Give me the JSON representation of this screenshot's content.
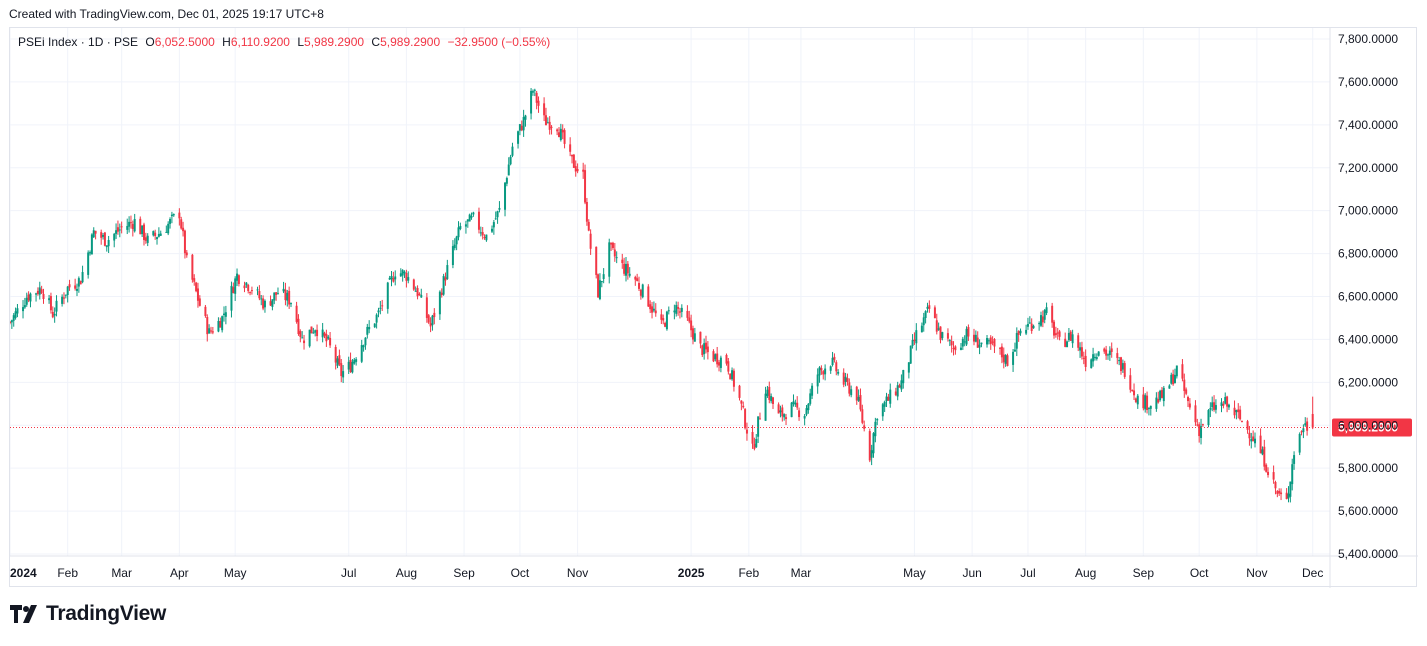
{
  "header": {
    "created_note": "Created with TradingView.com, Dec 01, 2025 19:17 UTC+8"
  },
  "legend": {
    "symbol": "PSEi Index · 1D · PSE",
    "open_label": "O",
    "open": "6,052.5000",
    "high_label": "H",
    "high": "6,110.9200",
    "low_label": "L",
    "low": "5,989.2900",
    "close_label": "C",
    "close": "5,989.2900",
    "change": "−32.9500 (−0.55%)"
  },
  "brand": {
    "name": "TradingView",
    "logo_icon": "tradingview-logo-icon"
  },
  "colors": {
    "up": "#089981",
    "down": "#f23645",
    "grid": "#f0f3fa",
    "last_price_bg": "#f23645",
    "text": "#131722"
  },
  "chart_data": {
    "type": "candlestick",
    "title": "PSEi Index · 1D · PSE",
    "ylim": [
      5400,
      7800
    ],
    "y_ticks": [
      "5,400.0000",
      "5,600.0000",
      "5,800.0000",
      "6,000.0000",
      "6,200.0000",
      "6,400.0000",
      "6,600.0000",
      "6,800.0000",
      "7,000.0000",
      "7,200.0000",
      "7,400.0000",
      "7,600.0000",
      "7,800.0000"
    ],
    "y_tick_values": [
      5400,
      5600,
      5800,
      6000,
      6200,
      6400,
      6600,
      6800,
      7000,
      7200,
      7400,
      7600,
      7800
    ],
    "x_range": [
      "2024-01-01",
      "2025-12-06"
    ],
    "x_ticks": [
      {
        "label": "2024",
        "date": "2024-01-01",
        "bold": true
      },
      {
        "label": "Feb",
        "date": "2024-02-01",
        "bold": false
      },
      {
        "label": "Mar",
        "date": "2024-03-01",
        "bold": false
      },
      {
        "label": "Apr",
        "date": "2024-04-01",
        "bold": false
      },
      {
        "label": "May",
        "date": "2024-05-01",
        "bold": false
      },
      {
        "label": "Jul",
        "date": "2024-07-01",
        "bold": false
      },
      {
        "label": "Aug",
        "date": "2024-08-01",
        "bold": false
      },
      {
        "label": "Sep",
        "date": "2024-09-01",
        "bold": false
      },
      {
        "label": "Oct",
        "date": "2024-10-01",
        "bold": false
      },
      {
        "label": "Nov",
        "date": "2024-11-01",
        "bold": false
      },
      {
        "label": "2025",
        "date": "2025-01-01",
        "bold": true
      },
      {
        "label": "Feb",
        "date": "2025-02-01",
        "bold": false
      },
      {
        "label": "Mar",
        "date": "2025-03-01",
        "bold": false
      },
      {
        "label": "May",
        "date": "2025-05-01",
        "bold": false
      },
      {
        "label": "Jun",
        "date": "2025-06-01",
        "bold": false
      },
      {
        "label": "Jul",
        "date": "2025-07-01",
        "bold": false
      },
      {
        "label": "Aug",
        "date": "2025-08-01",
        "bold": false
      },
      {
        "label": "Sep",
        "date": "2025-09-01",
        "bold": false
      },
      {
        "label": "Oct",
        "date": "2025-10-01",
        "bold": false
      },
      {
        "label": "Nov",
        "date": "2025-11-01",
        "bold": false
      },
      {
        "label": "Dec",
        "date": "2025-12-01",
        "bold": false
      }
    ],
    "last_price": 5989.29,
    "last_price_label": "5,989.2900",
    "close_path": [
      [
        "2024-01-01",
        6480
      ],
      [
        "2024-01-10",
        6600
      ],
      [
        "2024-01-18",
        6640
      ],
      [
        "2024-01-24",
        6520
      ],
      [
        "2024-02-01",
        6640
      ],
      [
        "2024-02-08",
        6680
      ],
      [
        "2024-02-15",
        6900
      ],
      [
        "2024-02-22",
        6860
      ],
      [
        "2024-03-01",
        6920
      ],
      [
        "2024-03-08",
        6950
      ],
      [
        "2024-03-15",
        6860
      ],
      [
        "2024-03-22",
        6900
      ],
      [
        "2024-04-01",
        6990
      ],
      [
        "2024-04-05",
        6760
      ],
      [
        "2024-04-12",
        6560
      ],
      [
        "2024-04-17",
        6430
      ],
      [
        "2024-04-24",
        6500
      ],
      [
        "2024-05-02",
        6700
      ],
      [
        "2024-05-10",
        6640
      ],
      [
        "2024-05-17",
        6560
      ],
      [
        "2024-05-24",
        6620
      ],
      [
        "2024-05-31",
        6580
      ],
      [
        "2024-06-06",
        6400
      ],
      [
        "2024-06-13",
        6460
      ],
      [
        "2024-06-20",
        6380
      ],
      [
        "2024-06-27",
        6240
      ],
      [
        "2024-07-02",
        6280
      ],
      [
        "2024-07-10",
        6420
      ],
      [
        "2024-07-17",
        6520
      ],
      [
        "2024-07-26",
        6720
      ],
      [
        "2024-08-01",
        6700
      ],
      [
        "2024-08-07",
        6620
      ],
      [
        "2024-08-14",
        6460
      ],
      [
        "2024-08-22",
        6700
      ],
      [
        "2024-08-30",
        6920
      ],
      [
        "2024-09-06",
        6960
      ],
      [
        "2024-09-13",
        6880
      ],
      [
        "2024-09-20",
        7000
      ],
      [
        "2024-09-27",
        7300
      ],
      [
        "2024-10-03",
        7420
      ],
      [
        "2024-10-08",
        7560
      ],
      [
        "2024-10-14",
        7420
      ],
      [
        "2024-10-21",
        7400
      ],
      [
        "2024-10-28",
        7240
      ],
      [
        "2024-11-04",
        7160
      ],
      [
        "2024-11-07",
        6880
      ],
      [
        "2024-11-12",
        6620
      ],
      [
        "2024-11-18",
        6820
      ],
      [
        "2024-11-25",
        6740
      ],
      [
        "2024-12-02",
        6680
      ],
      [
        "2024-12-09",
        6580
      ],
      [
        "2024-12-16",
        6460
      ],
      [
        "2024-12-23",
        6560
      ],
      [
        "2024-12-30",
        6480
      ],
      [
        "2025-01-06",
        6360
      ],
      [
        "2025-01-13",
        6320
      ],
      [
        "2025-01-20",
        6300
      ],
      [
        "2025-01-27",
        6120
      ],
      [
        "2025-02-03",
        5880
      ],
      [
        "2025-02-10",
        6180
      ],
      [
        "2025-02-17",
        6040
      ],
      [
        "2025-02-24",
        6080
      ],
      [
        "2025-03-03",
        6060
      ],
      [
        "2025-03-10",
        6240
      ],
      [
        "2025-03-17",
        6300
      ],
      [
        "2025-03-24",
        6200
      ],
      [
        "2025-03-31",
        6140
      ],
      [
        "2025-04-07",
        5860
      ],
      [
        "2025-04-11",
        6060
      ],
      [
        "2025-04-17",
        6120
      ],
      [
        "2025-04-24",
        6200
      ],
      [
        "2025-05-02",
        6420
      ],
      [
        "2025-05-09",
        6540
      ],
      [
        "2025-05-15",
        6420
      ],
      [
        "2025-05-22",
        6360
      ],
      [
        "2025-05-29",
        6420
      ],
      [
        "2025-06-06",
        6380
      ],
      [
        "2025-06-13",
        6360
      ],
      [
        "2025-06-20",
        6300
      ],
      [
        "2025-06-27",
        6440
      ],
      [
        "2025-07-04",
        6480
      ],
      [
        "2025-07-11",
        6520
      ],
      [
        "2025-07-18",
        6380
      ],
      [
        "2025-07-25",
        6420
      ],
      [
        "2025-08-01",
        6300
      ],
      [
        "2025-08-08",
        6360
      ],
      [
        "2025-08-15",
        6320
      ],
      [
        "2025-08-22",
        6260
      ],
      [
        "2025-08-29",
        6120
      ],
      [
        "2025-09-05",
        6100
      ],
      [
        "2025-09-12",
        6140
      ],
      [
        "2025-09-19",
        6260
      ],
      [
        "2025-09-26",
        6080
      ],
      [
        "2025-10-01",
        5980
      ],
      [
        "2025-10-08",
        6080
      ],
      [
        "2025-10-15",
        6100
      ],
      [
        "2025-10-22",
        6040
      ],
      [
        "2025-10-29",
        5960
      ],
      [
        "2025-11-05",
        5840
      ],
      [
        "2025-11-12",
        5680
      ],
      [
        "2025-11-17",
        5640
      ],
      [
        "2025-11-21",
        5880
      ],
      [
        "2025-11-26",
        6000
      ],
      [
        "2025-12-01",
        5989.29
      ]
    ]
  }
}
